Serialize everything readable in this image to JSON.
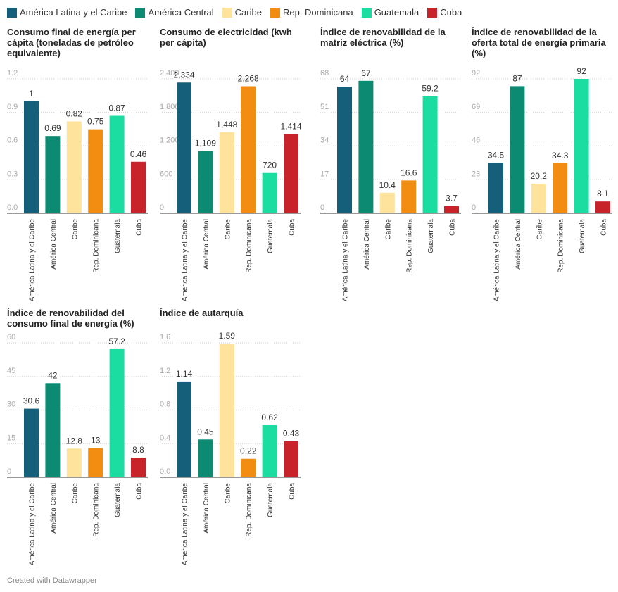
{
  "legend": [
    {
      "name": "América Latina y el Caribe",
      "color": "#165f7b"
    },
    {
      "name": "América Central",
      "color": "#0c8b72"
    },
    {
      "name": "Caribe",
      "color": "#fde39b"
    },
    {
      "name": "Rep. Dominicana",
      "color": "#f38d12"
    },
    {
      "name": "Guatemala",
      "color": "#1bdda1"
    },
    {
      "name": "Cuba",
      "color": "#c8232b"
    }
  ],
  "chart_data": [
    {
      "type": "bar",
      "title": "Consumo final de energía per cápita (toneladas de petróleo equivalente)",
      "categories": [
        "América Latina y el Caribe",
        "América Central",
        "Caribe",
        "Rep. Dominicana",
        "Guatemala",
        "Cuba"
      ],
      "values": [
        1,
        0.69,
        0.82,
        0.75,
        0.87,
        0.46
      ],
      "colors": [
        "#165f7b",
        "#0c8b72",
        "#fde39b",
        "#f38d12",
        "#1bdda1",
        "#c8232b"
      ],
      "ylim": [
        0,
        1.2
      ],
      "yticks": [
        {
          "value": 0,
          "label": "0.0"
        },
        0.3,
        0.6,
        0.9,
        1.2
      ],
      "grid": true
    },
    {
      "type": "bar",
      "title": "Consumo de electricidad (kwh per cápita)",
      "categories": [
        "América Latina y el Caribe",
        "América Central",
        "Caribe",
        "Rep. Dominicana",
        "Guatemala",
        "Cuba"
      ],
      "values": [
        2334,
        1109,
        1448,
        2268,
        720,
        1414
      ],
      "value_labels": [
        "2,334",
        "1,109",
        "1,448",
        "2,268",
        "720",
        "1,414"
      ],
      "colors": [
        "#165f7b",
        "#0c8b72",
        "#fde39b",
        "#f38d12",
        "#1bdda1",
        "#c8232b"
      ],
      "ylim": [
        0,
        2400
      ],
      "yticks": [
        0,
        600,
        {
          "value": 1200,
          "label": "1,200"
        },
        {
          "value": 1800,
          "label": "1,800"
        },
        {
          "value": 2400,
          "label": "2,400"
        }
      ],
      "grid": true
    },
    {
      "type": "bar",
      "title": "Índice de renovabilidad de la matriz eléctrica (%)",
      "categories": [
        "América Latina y el Caribe",
        "América Central",
        "Caribe",
        "Rep. Dominicana",
        "Guatemala",
        "Cuba"
      ],
      "values": [
        64,
        67,
        10.4,
        16.6,
        59.2,
        3.7
      ],
      "colors": [
        "#165f7b",
        "#0c8b72",
        "#fde39b",
        "#f38d12",
        "#1bdda1",
        "#c8232b"
      ],
      "ylim": [
        0,
        68
      ],
      "yticks": [
        0,
        17,
        34,
        51,
        68
      ],
      "grid": true
    },
    {
      "type": "bar",
      "title": "Índice de renovabilidad de la oferta total de energía primaria (%)",
      "categories": [
        "América Latina y el Caribe",
        "América Central",
        "Caribe",
        "Rep. Dominicana",
        "Guatemala",
        "Cuba"
      ],
      "values": [
        34.5,
        87,
        20.2,
        34.3,
        92,
        8.1
      ],
      "colors": [
        "#165f7b",
        "#0c8b72",
        "#fde39b",
        "#f38d12",
        "#1bdda1",
        "#c8232b"
      ],
      "ylim": [
        0,
        92
      ],
      "yticks": [
        0,
        23,
        46,
        69,
        92
      ],
      "grid": true
    },
    {
      "type": "bar",
      "title": "Índice de renovabilidad del consumo final de energía (%)",
      "categories": [
        "América Latina y el Caribe",
        "América Central",
        "Caribe",
        "Rep. Dominicana",
        "Guatemala",
        "Cuba"
      ],
      "values": [
        30.6,
        42,
        12.8,
        13,
        57.2,
        8.8
      ],
      "colors": [
        "#165f7b",
        "#0c8b72",
        "#fde39b",
        "#f38d12",
        "#1bdda1",
        "#c8232b"
      ],
      "ylim": [
        0,
        60
      ],
      "yticks": [
        0,
        15,
        30,
        45,
        60
      ],
      "grid": true
    },
    {
      "type": "bar",
      "title": "Índice de autarquía",
      "categories": [
        "América Latina y el Caribe",
        "América Central",
        "Caribe",
        "Rep. Dominicana",
        "Guatemala",
        "Cuba"
      ],
      "values": [
        1.14,
        0.45,
        1.59,
        0.22,
        0.62,
        0.43
      ],
      "colors": [
        "#165f7b",
        "#0c8b72",
        "#fde39b",
        "#f38d12",
        "#1bdda1",
        "#c8232b"
      ],
      "ylim": [
        0,
        1.6
      ],
      "yticks": [
        {
          "value": 0,
          "label": "0.0"
        },
        0.4,
        0.8,
        1.2,
        1.6
      ],
      "grid": true
    }
  ],
  "credit": "Created with Datawrapper"
}
